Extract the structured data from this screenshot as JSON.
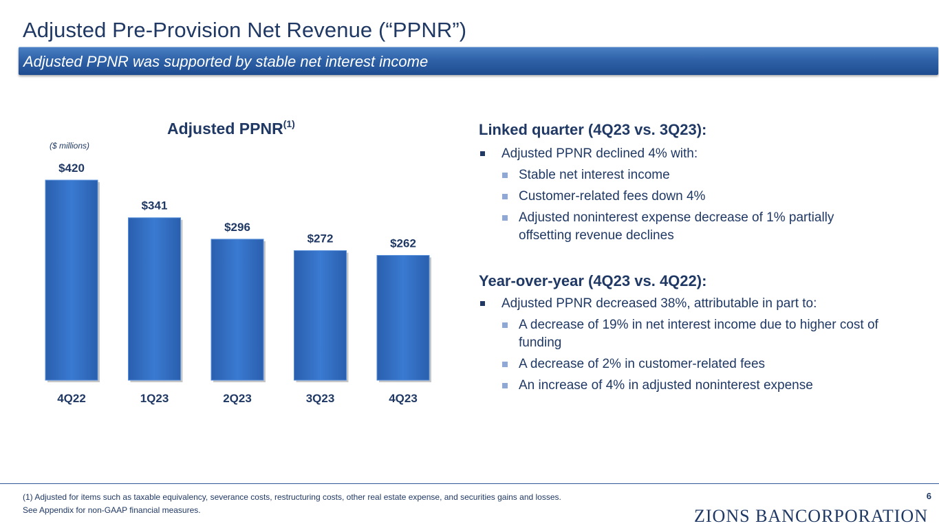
{
  "header": {
    "title": "Adjusted Pre-Provision Net Revenue (“PPNR”)",
    "subtitle": "Adjusted PPNR was supported by stable net interest income"
  },
  "chart": {
    "title": "Adjusted PPNR",
    "title_sup": "(1)",
    "units": "($ millions)"
  },
  "chart_data": {
    "type": "bar",
    "title": "Adjusted PPNR(1)",
    "categories": [
      "4Q22",
      "1Q23",
      "2Q23",
      "3Q23",
      "4Q23"
    ],
    "values": [
      420,
      341,
      296,
      272,
      262
    ],
    "data_labels": [
      "$420",
      "$341",
      "$296",
      "$272",
      "$262"
    ],
    "xlabel": "",
    "ylabel": "$ millions",
    "ylim": [
      0,
      420
    ],
    "grid": false,
    "bar_color": "#2f6fc4"
  },
  "linked_quarter": {
    "heading": "Linked quarter (4Q23 vs. 3Q23):",
    "bullet": "Adjusted PPNR declined 4% with:",
    "sub": [
      "Stable net interest income",
      "Customer-related fees down 4%",
      "Adjusted noninterest expense decrease of 1% partially offsetting revenue declines"
    ]
  },
  "year_over_year": {
    "heading": "Year-over-year (4Q23 vs. 4Q22):",
    "bullet": "Adjusted PPNR decreased 38%, attributable in part to:",
    "sub": [
      "A decrease of 19% in net interest income due to higher cost of funding",
      "A decrease of 2% in customer-related fees",
      "An increase of 4% in adjusted noninterest expense"
    ]
  },
  "footer": {
    "note1": "(1)  Adjusted for items such as taxable equivalency, severance costs, restructuring costs, other real estate expense, and securities gains and losses.",
    "note2": "See Appendix for non-GAAP financial measures.",
    "page": "6",
    "logo_text": "ZIONS BANCORPORATION"
  }
}
